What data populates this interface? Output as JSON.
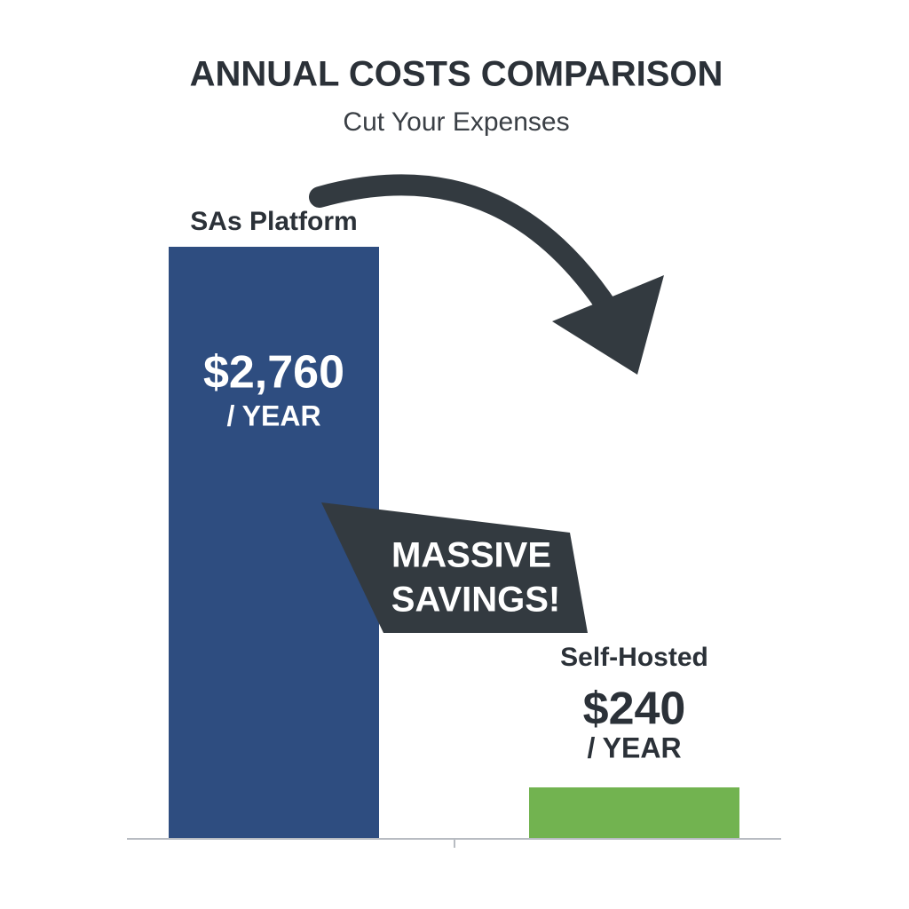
{
  "chart_data": {
    "type": "bar",
    "title": "ANNUAL COSTS COMPARISON",
    "subtitle": "Cut Your Expenses",
    "categories": [
      "SAs Platform",
      "Self-Hosted"
    ],
    "values": [
      2760,
      240
    ],
    "value_labels": [
      "$2,760",
      "$240"
    ],
    "value_suffix": "/ YEAR",
    "colors": [
      "#2e4d80",
      "#72b350"
    ],
    "annotation": [
      "MASSIVE",
      "SAVINGS!"
    ]
  }
}
